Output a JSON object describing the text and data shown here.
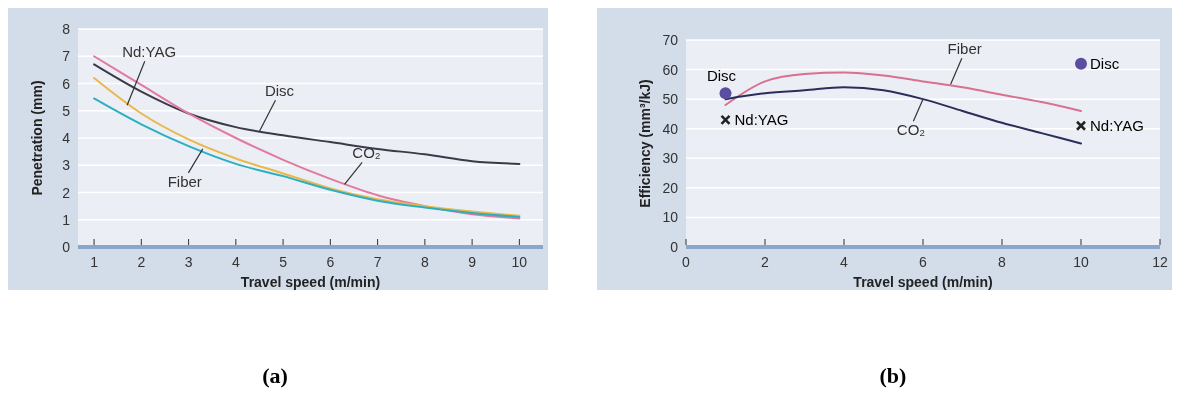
{
  "chart_data": [
    {
      "type": "line",
      "xlabel": "Travel speed (m/min)",
      "ylabel": "Penetration (mm)",
      "x": [
        1,
        2,
        3,
        4,
        5,
        6,
        7,
        8,
        9,
        10
      ],
      "xlim": [
        0.66,
        10.5
      ],
      "xticks": [
        1,
        2,
        3,
        4,
        5,
        6,
        7,
        8,
        9,
        10
      ],
      "ylim": [
        0,
        8
      ],
      "yticks": [
        0,
        1,
        2,
        3,
        4,
        5,
        6,
        7,
        8
      ],
      "grid": "y",
      "series": [
        {
          "color": "#3a3a4a",
          "values": [
            6.7,
            5.7,
            4.9,
            4.4,
            4.1,
            3.85,
            3.6,
            3.4,
            3.15,
            3.05
          ]
        },
        {
          "color": "#e07aa0",
          "values": [
            7.0,
            5.95,
            4.9,
            4.0,
            3.2,
            2.5,
            1.9,
            1.5,
            1.2,
            1.05
          ]
        },
        {
          "color": "#e8b84a",
          "values": [
            6.2,
            4.9,
            3.95,
            3.25,
            2.7,
            2.15,
            1.75,
            1.5,
            1.3,
            1.15
          ]
        },
        {
          "color": "#2ab0c0",
          "values": [
            5.45,
            4.5,
            3.7,
            3.05,
            2.6,
            2.1,
            1.7,
            1.45,
            1.25,
            1.1
          ]
        }
      ],
      "annotations": [
        {
          "text": "Nd:YAG",
          "x": 1.7,
          "y": 5.2
        },
        {
          "text": "Disc",
          "x": 4.5,
          "y": 4.25
        },
        {
          "text": "Fiber",
          "x": 3.3,
          "y": 3.6
        },
        {
          "text": "CO₂",
          "x": 6.3,
          "y": 2.3
        },
        "(a)"
      ]
    },
    {
      "type": "line",
      "xlabel": "Travel speed (m/min)",
      "ylabel": "Efficiency (mm³/kJ)",
      "x": [
        1,
        2,
        3,
        4,
        5,
        6,
        7,
        8,
        9,
        10
      ],
      "xlim": [
        0,
        12
      ],
      "xticks": [
        0,
        2,
        4,
        6,
        8,
        10,
        12
      ],
      "ylim": [
        0,
        70
      ],
      "yticks": [
        0,
        10,
        20,
        30,
        40,
        50,
        60,
        70
      ],
      "grid": "y",
      "series": [
        {
          "color": "#d9708f",
          "values": [
            48,
            56,
            58.5,
            59,
            58,
            56,
            54,
            51.5,
            49,
            46
          ]
        },
        {
          "color": "#2b2e5a",
          "values": [
            50,
            52,
            53,
            54,
            53,
            50,
            46,
            42,
            38.5,
            35
          ]
        },
        {
          "type": "scatter",
          "name": "Disc",
          "marker": "circle",
          "color": "#5b4ea0",
          "values": [
            52,
            null,
            null,
            null,
            null,
            null,
            null,
            null,
            null,
            62
          ]
        },
        {
          "type": "scatter",
          "name": "Nd:YAG",
          "marker": "cross",
          "color": "#222222",
          "values": [
            43,
            null,
            null,
            null,
            null,
            null,
            null,
            null,
            null,
            41
          ]
        }
      ],
      "annotations": [
        {
          "text": "Fiber",
          "x": 6.7,
          "y": 55
        },
        {
          "text": "CO₂",
          "x": 6.0,
          "y": 50
        },
        "(b)"
      ]
    }
  ]
}
